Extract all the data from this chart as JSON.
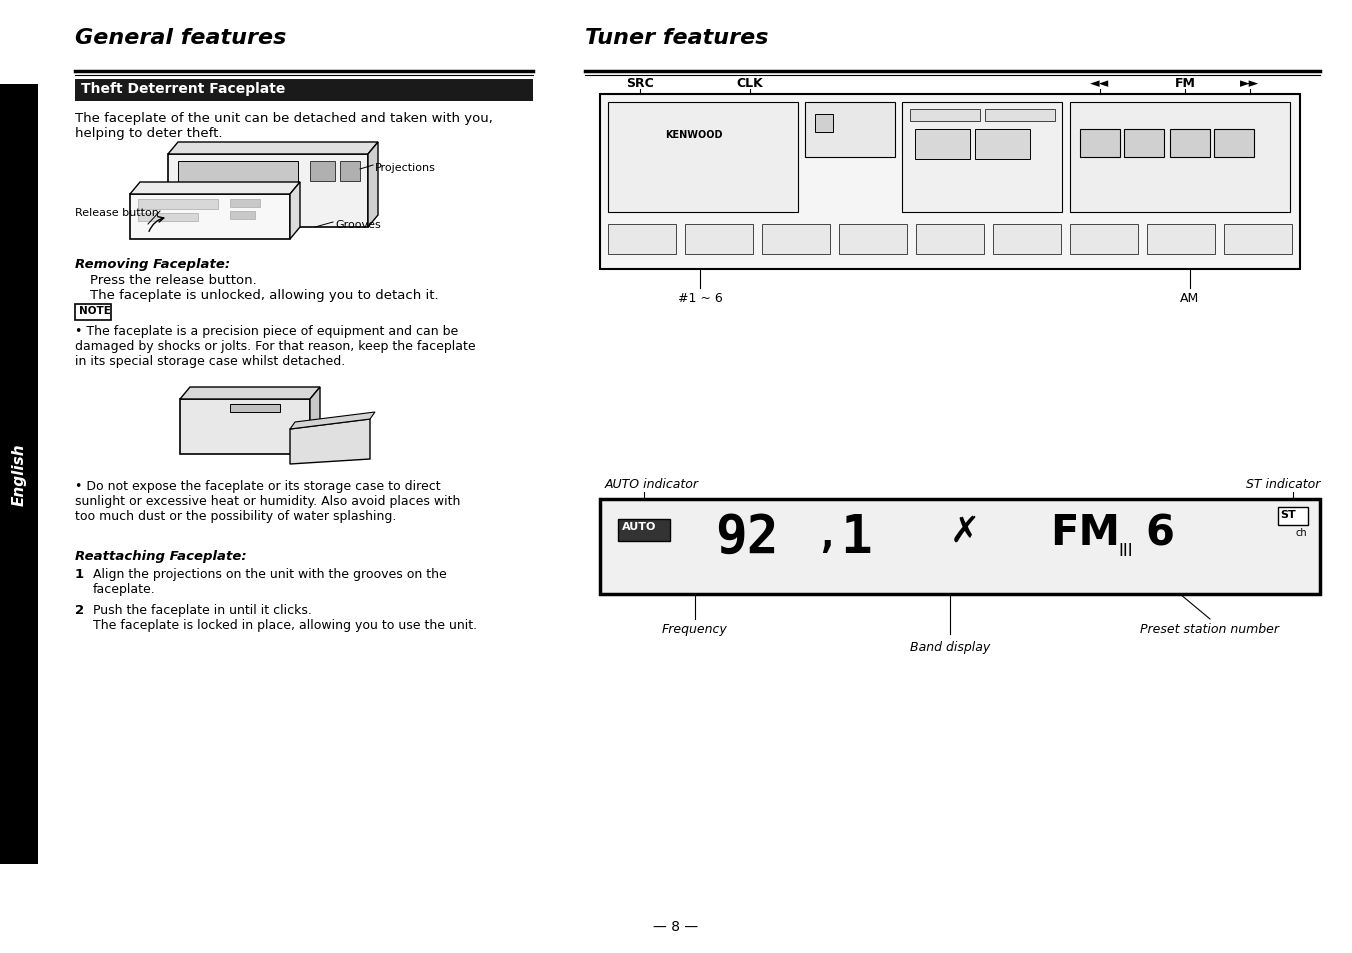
{
  "bg_color": "#ffffff",
  "page_number": "— 8 —",
  "left_title": "General features",
  "right_title": "Tuner features",
  "section_header": "Theft Deterrent Faceplate",
  "intro_text": "The faceplate of the unit can be detached and taken with you,\nhelping to deter theft.",
  "removing_title": "Removing Faceplate:",
  "removing_text": "Press the release button.\nThe faceplate is unlocked, allowing you to detach it.",
  "note_label": "NOTE",
  "note_text": "The faceplate is a precision piece of equipment and can be\ndamaged by shocks or jolts. For that reason, keep the faceplate\nin its special storage case whilst detached.",
  "bullet2_text": "Do not expose the faceplate or its storage case to direct\nsunlight or excessive heat or humidity. Also avoid places with\ntoo much dust or the possibility of water splashing.",
  "reattaching_title": "Reattaching Faceplate:",
  "step1_text": "Align the projections on the unit with the grooves on the\nfaceplate.",
  "step2_text": "Push the faceplate in until it clicks.\nThe faceplate is locked in place, allowing you to use the unit.",
  "english_label": "English",
  "release_button_label": "Release button",
  "projections_label": "Projections",
  "grooves_label": "Grooves",
  "auto_indicator_label": "AUTO indicator",
  "st_indicator_label": "ST indicator",
  "frequency_label": "Frequency",
  "band_display_label": "Band display",
  "preset_station_label": "Preset station number",
  "src_label": "SRC",
  "clk_label": "CLK",
  "fm_label": "FM",
  "am_label": "AM",
  "hash16_label": "#1 ~ 6"
}
